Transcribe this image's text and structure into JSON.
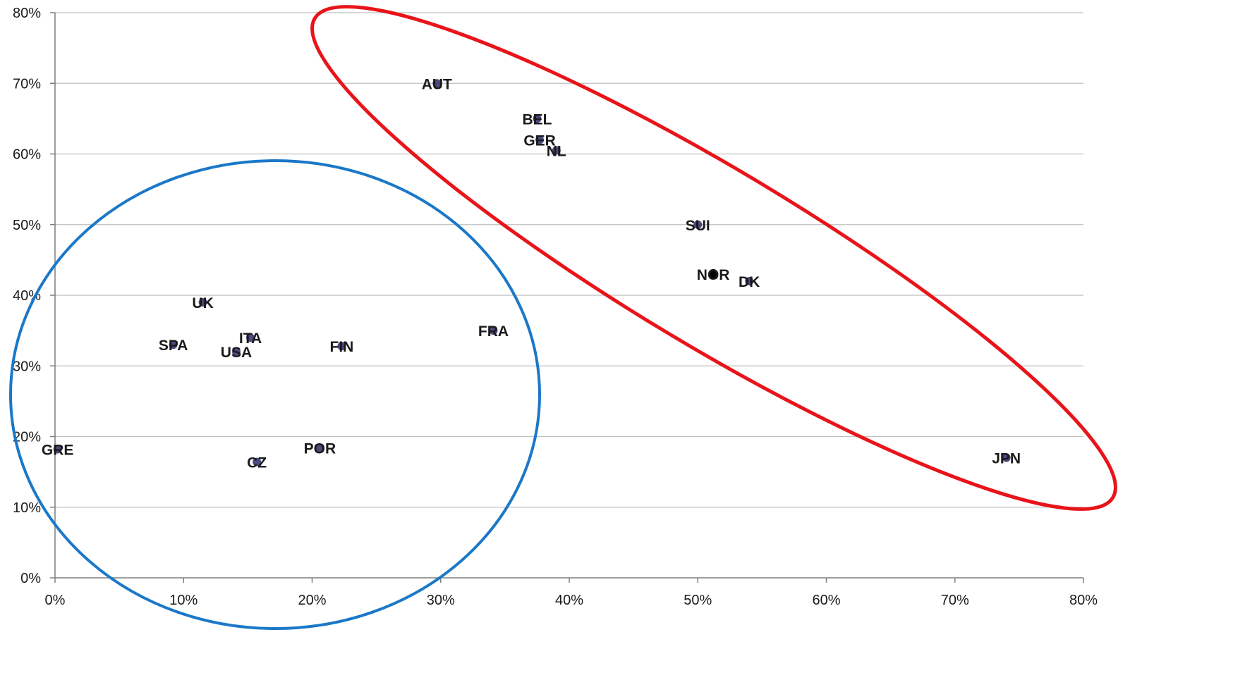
{
  "chart_data": {
    "type": "scatter",
    "title": "",
    "xlabel": "",
    "ylabel": "",
    "xlim": [
      0,
      80
    ],
    "ylim": [
      0,
      80
    ],
    "x_ticks": [
      0,
      10,
      20,
      30,
      40,
      50,
      60,
      70,
      80
    ],
    "y_ticks": [
      0,
      10,
      20,
      30,
      40,
      50,
      60,
      70,
      80
    ],
    "x_tick_labels": [
      "0%",
      "10%",
      "20%",
      "30%",
      "40%",
      "50%",
      "60%",
      "70%",
      "80%"
    ],
    "y_tick_labels": [
      "0%",
      "10%",
      "20%",
      "30%",
      "40%",
      "50%",
      "60%",
      "70%",
      "80%"
    ],
    "grid": "horizontal",
    "points": [
      {
        "label": "AUT",
        "x": 29.7,
        "y": 70
      },
      {
        "label": "BEL",
        "x": 37.5,
        "y": 65
      },
      {
        "label": "GER",
        "x": 37.7,
        "y": 62
      },
      {
        "label": "NL",
        "x": 39,
        "y": 60.5
      },
      {
        "label": "SUI",
        "x": 50.0,
        "y": 50
      },
      {
        "label": "NOR",
        "x": 51.2,
        "y": 43
      },
      {
        "label": "DK",
        "x": 54,
        "y": 42
      },
      {
        "label": "UK",
        "x": 11.5,
        "y": 39
      },
      {
        "label": "ITA",
        "x": 15.2,
        "y": 34
      },
      {
        "label": "SPA",
        "x": 9.2,
        "y": 33
      },
      {
        "label": "USA",
        "x": 14.1,
        "y": 32
      },
      {
        "label": "FIN",
        "x": 22.3,
        "y": 32.8
      },
      {
        "label": "FRA",
        "x": 34.1,
        "y": 35
      },
      {
        "label": "GRE",
        "x": 0.2,
        "y": 18.2
      },
      {
        "label": "POR",
        "x": 20.6,
        "y": 18.4
      },
      {
        "label": "CZ",
        "x": 15.7,
        "y": 16.4
      },
      {
        "label": "JPN",
        "x": 74.0,
        "y": 17
      }
    ],
    "groups": [
      {
        "color": "#e8141a",
        "members": [
          "AUT",
          "BEL",
          "GER",
          "NL",
          "SUI",
          "NOR",
          "DK",
          "JPN"
        ]
      },
      {
        "color": "#1b78c8",
        "members": [
          "UK",
          "ITA",
          "SPA",
          "USA",
          "FIN",
          "FRA",
          "GRE",
          "POR",
          "CZ"
        ]
      }
    ]
  },
  "colors": {
    "grid": "#bfbfbf",
    "axis": "#7f7f7f",
    "label": "#1a1a1a",
    "marker": "#2b2b6b",
    "marker_nor": "#000000",
    "red_group": "#e8141a",
    "blue_group": "#1b78c8"
  }
}
